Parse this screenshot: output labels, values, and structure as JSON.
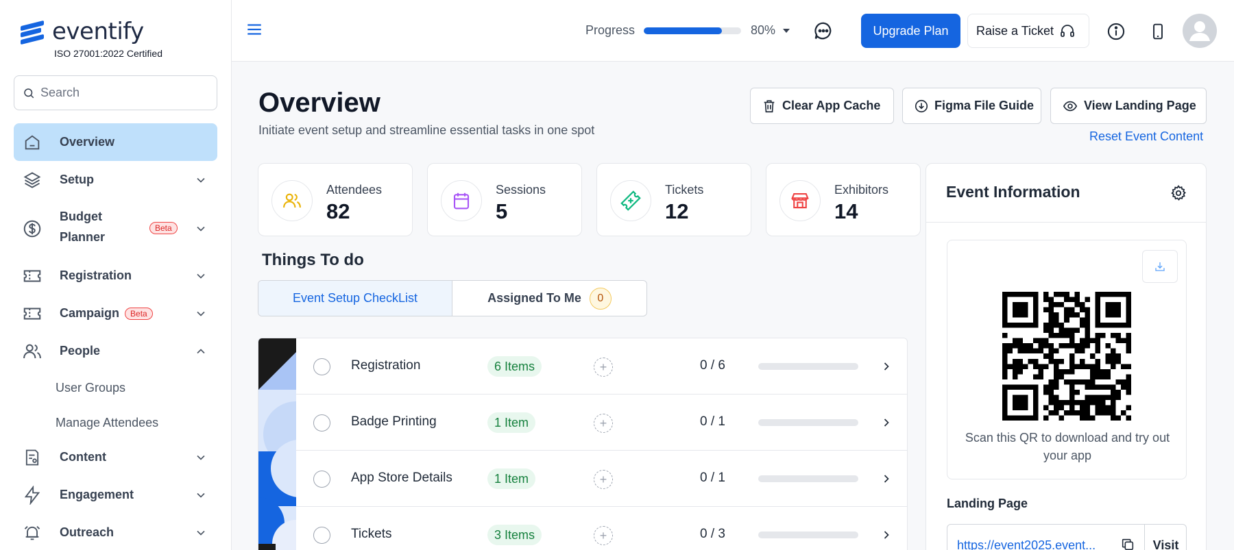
{
  "brand": {
    "name": "eventify",
    "certification": "ISO 27001:2022 Certified"
  },
  "search": {
    "placeholder": "Search"
  },
  "sidebar": {
    "items": [
      {
        "label": "Overview",
        "icon": "home-icon",
        "active": true
      },
      {
        "label": "Setup",
        "icon": "layers-icon"
      },
      {
        "label": "Budget",
        "label2": "Planner",
        "badge": "Beta",
        "icon": "dollar-circle-icon"
      },
      {
        "label": "Registration",
        "icon": "ticket-icon"
      },
      {
        "label": "Campaign",
        "badge": "Beta",
        "icon": "ticket-icon"
      },
      {
        "label": "People",
        "icon": "users-icon",
        "expanded": true
      },
      {
        "label": "Content",
        "icon": "document-icon"
      },
      {
        "label": "Engagement",
        "icon": "bolt-icon"
      },
      {
        "label": "Outreach",
        "icon": "alarm-icon"
      }
    ],
    "people_sub": [
      "User Groups",
      "Manage Attendees"
    ]
  },
  "topbar": {
    "progress_label": "Progress",
    "progress_value": 0.8,
    "progress_text": "80%",
    "upgrade_label": "Upgrade Plan",
    "ticket_label": "Raise a Ticket"
  },
  "header": {
    "title": "Overview",
    "subtitle": "Initiate event setup and streamline essential tasks in one spot",
    "buttons": {
      "clear_cache": "Clear App Cache",
      "figma_guide": "Figma File Guide",
      "view_landing": "View Landing Page"
    },
    "reset_link": "Reset Event Content"
  },
  "stats": [
    {
      "label": "Attendees",
      "value": "82",
      "icon": "users-icon",
      "color": "#eab308"
    },
    {
      "label": "Sessions",
      "value": "5",
      "icon": "calendar-icon",
      "color": "#a855f7"
    },
    {
      "label": "Tickets",
      "value": "12",
      "icon": "ticket-icon",
      "color": "#10b981"
    },
    {
      "label": "Exhibitors",
      "value": "14",
      "icon": "store-icon",
      "color": "#ef4444"
    }
  ],
  "todo": {
    "title": "Things To do",
    "tabs": {
      "checklist": "Event Setup CheckList",
      "assigned": "Assigned To Me",
      "assigned_count": "0"
    },
    "rows": [
      {
        "name": "Registration",
        "badge": "6 Items",
        "count": "0 / 6",
        "progress": 0
      },
      {
        "name": "Badge Printing",
        "badge": "1 Item",
        "count": "0 / 1",
        "progress": 0
      },
      {
        "name": "App Store Details",
        "badge": "1 Item",
        "count": "0 / 1",
        "progress": 0
      },
      {
        "name": "Tickets",
        "badge": "3 Items",
        "count": "0 / 3",
        "progress": 0
      }
    ]
  },
  "event_info": {
    "title": "Event Information",
    "qr_text": "Scan this QR to download and try out your app",
    "landing_label": "Landing Page",
    "landing_url": "https://event2025.event...",
    "visit_label": "Visit"
  },
  "colors": {
    "accent": "#1565e0",
    "active_nav": "#bfe0fb"
  }
}
